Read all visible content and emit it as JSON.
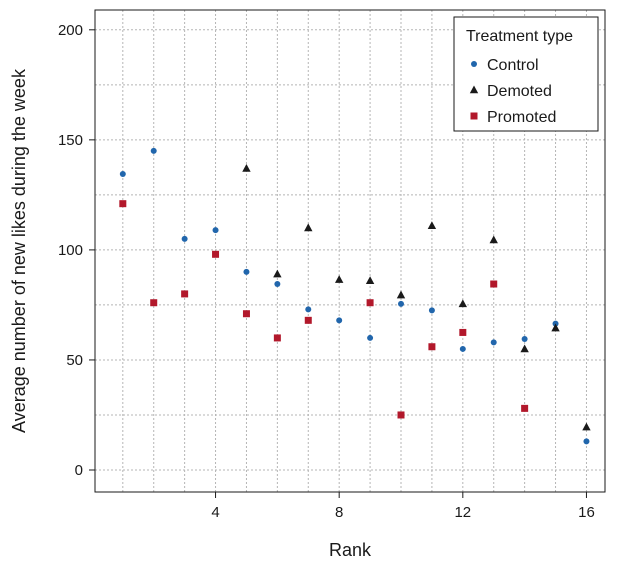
{
  "chart_data": {
    "type": "scatter",
    "xlabel": "Rank",
    "ylabel": "Average number of new likes during the week",
    "xlim": [
      0.1,
      16.6
    ],
    "ylim": [
      -10,
      209
    ],
    "x_ticks": [
      4,
      8,
      12,
      16
    ],
    "y_ticks": [
      0,
      50,
      100,
      150,
      200
    ],
    "grid": true,
    "legend": {
      "title": "Treatment type",
      "position": "top-right"
    },
    "series": [
      {
        "name": "Control",
        "marker": "circle",
        "color": "#2166ac",
        "x": [
          1,
          2,
          3,
          4,
          5,
          6,
          7,
          8,
          9,
          10,
          11,
          12,
          13,
          14,
          15,
          16
        ],
        "y": [
          134.5,
          145,
          105,
          109,
          90,
          84.5,
          73,
          68,
          60,
          75.5,
          72.5,
          55,
          58,
          59.5,
          66.5,
          13
        ]
      },
      {
        "name": "Demoted",
        "marker": "triangle",
        "color": "#1a1a1a",
        "x": [
          5,
          6,
          7,
          8,
          9,
          10,
          11,
          12,
          13,
          14,
          15,
          16
        ],
        "y": [
          137,
          89,
          110,
          86.5,
          86,
          79.5,
          111,
          75.5,
          104.5,
          55,
          64.5,
          19.5
        ]
      },
      {
        "name": "Promoted",
        "marker": "square",
        "color": "#b2182b",
        "x": [
          1,
          2,
          3,
          4,
          5,
          6,
          7,
          8,
          9,
          10,
          11,
          12,
          13,
          14
        ],
        "y": [
          121,
          76,
          80,
          98,
          71,
          60,
          68,
          null,
          76,
          25,
          56,
          62.5,
          84.5,
          28
        ]
      }
    ]
  }
}
